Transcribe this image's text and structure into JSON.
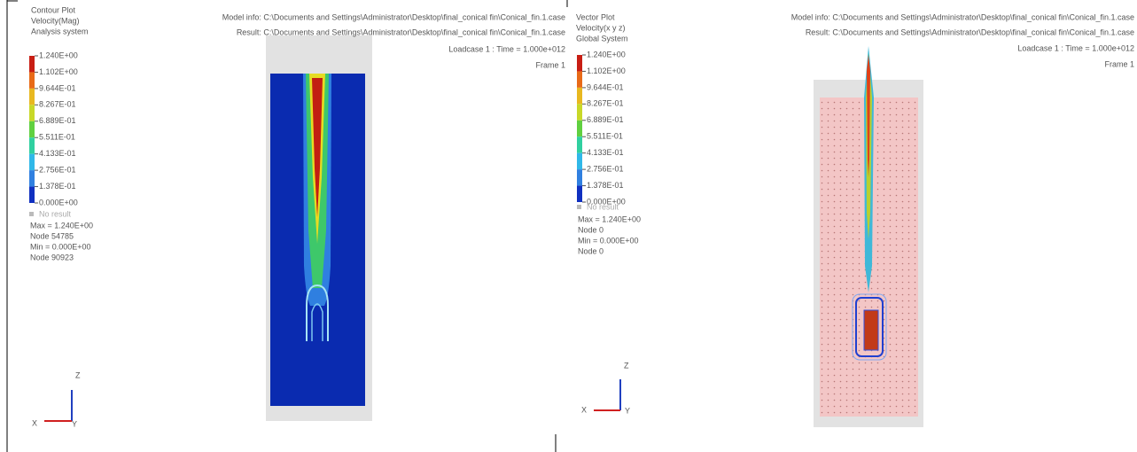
{
  "panels": [
    {
      "plot_title": "Contour Plot",
      "quantity": "Velocity(Mag)",
      "system": "Analysis system",
      "legend": [
        "1.240E+00",
        "1.102E+00",
        "9.644E-01",
        "8.267E-01",
        "6.889E-01",
        "5.511E-01",
        "4.133E-01",
        "2.756E-01",
        "1.378E-01",
        "0.000E+00"
      ],
      "no_result": "No result",
      "stats": [
        "Max = 1.240E+00",
        "Node 54785",
        "Min = 0.000E+00",
        "Node 90923"
      ],
      "model_info": "Model info: C:\\Documents and Settings\\Administrator\\Desktop\\final_conical fin\\Conical_fin.1.case",
      "result": "Result: C:\\Documents and Settings\\Administrator\\Desktop\\final_conical fin\\Conical_fin.1.case",
      "loadcase": "Loadcase 1 : Time =  1.000e+012",
      "frame": "Frame 1",
      "triad": {
        "z": "Z",
        "x": "X",
        "y": "Y"
      }
    },
    {
      "plot_title": "Vector Plot",
      "quantity": "Velocity(x y z)",
      "system": "Global System",
      "legend": [
        "1.240E+00",
        "1.102E+00",
        "9.644E-01",
        "8.267E-01",
        "6.889E-01",
        "5.511E-01",
        "4.133E-01",
        "2.756E-01",
        "1.378E-01",
        "0.000E+00"
      ],
      "no_result": "No result",
      "stats": [
        "Max = 1.240E+00",
        "Node 0",
        "Min = 0.000E+00",
        "Node 0"
      ],
      "model_info": "Model info: C:\\Documents and Settings\\Administrator\\Desktop\\final_conical fin\\Conical_fin.1.case",
      "result": "Result: C:\\Documents and Settings\\Administrator\\Desktop\\final_conical fin\\Conical_fin.1.case",
      "loadcase": "Loadcase 1 : Time =  1.000e+012",
      "frame": "Frame 1",
      "triad": {
        "z": "Z",
        "x": "X",
        "y": "Y"
      }
    }
  ]
}
